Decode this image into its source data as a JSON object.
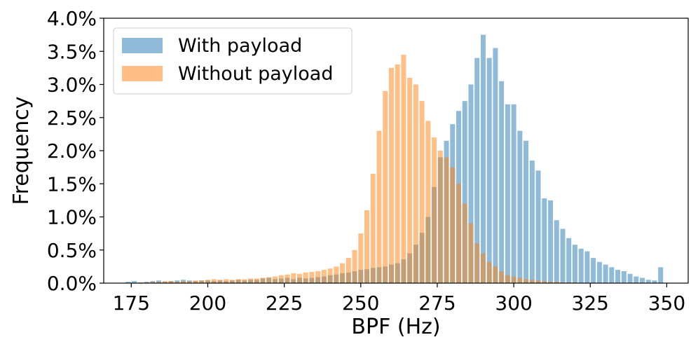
{
  "chart_data": {
    "type": "histogram",
    "xlabel": "BPF (Hz)",
    "ylabel": "Frequency",
    "xlim": [
      166,
      357
    ],
    "ylim": [
      0,
      0.04
    ],
    "bin_width": 1.6,
    "xticks": [
      175,
      200,
      225,
      250,
      275,
      300,
      325,
      350
    ],
    "xtick_labels": [
      "175",
      "200",
      "225",
      "250",
      "275",
      "300",
      "325",
      "350"
    ],
    "yticks": [
      0,
      0.005,
      0.01,
      0.015,
      0.02,
      0.025,
      0.03,
      0.035,
      0.04
    ],
    "ytick_labels": [
      "0.0%",
      "0.5%",
      "1.0%",
      "1.5%",
      "2.0%",
      "2.5%",
      "3.0%",
      "3.5%",
      "4.0%"
    ],
    "legend_position": "upper-left",
    "series": [
      {
        "name": "With payload",
        "color": "#1f77b4",
        "opacity": 0.5,
        "x": [
          174,
          176,
          178,
          180,
          182,
          184,
          186,
          188,
          190,
          192,
          194,
          196,
          198,
          200,
          202,
          204,
          206,
          208,
          210,
          212,
          214,
          216,
          218,
          220,
          222,
          224,
          226,
          228,
          230,
          232,
          234,
          236,
          238,
          240,
          242,
          244,
          246,
          248,
          250,
          252,
          254,
          256,
          258,
          260,
          262,
          264,
          266,
          268,
          270,
          272,
          274,
          276,
          278,
          280,
          282,
          284,
          286,
          288,
          290,
          292,
          294,
          296,
          298,
          300,
          302,
          304,
          306,
          308,
          310,
          312,
          314,
          316,
          318,
          320,
          322,
          324,
          326,
          328,
          330,
          332,
          334,
          336,
          338,
          340,
          342,
          344,
          346,
          348,
          350
        ],
        "values": [
          0.0002,
          0.0003,
          0.0001,
          0.0002,
          0.0003,
          0.0004,
          0.0002,
          0.0003,
          0.0004,
          0.0005,
          0.0004,
          0.0003,
          0.0004,
          0.0004,
          0.0003,
          0.0004,
          0.0003,
          0.0004,
          0.0005,
          0.0004,
          0.0005,
          0.0005,
          0.0007,
          0.0008,
          0.0006,
          0.0007,
          0.0008,
          0.0006,
          0.0008,
          0.0007,
          0.0008,
          0.0009,
          0.001,
          0.0012,
          0.0013,
          0.0015,
          0.0016,
          0.0018,
          0.002,
          0.0021,
          0.0023,
          0.0024,
          0.0025,
          0.0028,
          0.003,
          0.0036,
          0.0045,
          0.0058,
          0.0076,
          0.01,
          0.0145,
          0.019,
          0.0215,
          0.024,
          0.026,
          0.0275,
          0.03,
          0.034,
          0.0375,
          0.034,
          0.0355,
          0.0305,
          0.027,
          0.027,
          0.023,
          0.0215,
          0.0185,
          0.017,
          0.0128,
          0.0125,
          0.0095,
          0.0082,
          0.0068,
          0.0058,
          0.0052,
          0.0048,
          0.0038,
          0.0032,
          0.0028,
          0.0024,
          0.002,
          0.0018,
          0.0014,
          0.001,
          0.0008,
          0.0005,
          0.0004,
          0.0024,
          0.0
        ]
      },
      {
        "name": "Without payload",
        "color": "#ff7f0e",
        "opacity": 0.5,
        "x": [
          174,
          176,
          178,
          180,
          182,
          184,
          186,
          188,
          190,
          192,
          194,
          196,
          198,
          200,
          202,
          204,
          206,
          208,
          210,
          212,
          214,
          216,
          218,
          220,
          222,
          224,
          226,
          228,
          230,
          232,
          234,
          236,
          238,
          240,
          242,
          244,
          246,
          248,
          250,
          252,
          254,
          256,
          258,
          260,
          262,
          264,
          266,
          268,
          270,
          272,
          274,
          276,
          278,
          280,
          282,
          284,
          286,
          288,
          290,
          292,
          294,
          296,
          298,
          300,
          302,
          304,
          306,
          308,
          310,
          312,
          314,
          316,
          318,
          320,
          322,
          324,
          326,
          328,
          330,
          332,
          334,
          336,
          338,
          340,
          342,
          344,
          346,
          348,
          350
        ],
        "values": [
          0.0,
          0.0,
          0.0001,
          0.0001,
          0.0002,
          0.0002,
          0.0003,
          0.0003,
          0.0002,
          0.0003,
          0.0003,
          0.0004,
          0.0004,
          0.0005,
          0.0006,
          0.0005,
          0.0006,
          0.0005,
          0.0006,
          0.0006,
          0.0007,
          0.0007,
          0.0008,
          0.0009,
          0.001,
          0.0012,
          0.0013,
          0.0015,
          0.0014,
          0.0016,
          0.0017,
          0.0018,
          0.002,
          0.0022,
          0.0025,
          0.003,
          0.0038,
          0.005,
          0.0075,
          0.011,
          0.0165,
          0.023,
          0.029,
          0.0325,
          0.033,
          0.0345,
          0.031,
          0.03,
          0.0275,
          0.0245,
          0.022,
          0.02,
          0.019,
          0.0175,
          0.015,
          0.012,
          0.009,
          0.006,
          0.0045,
          0.0032,
          0.0025,
          0.0018,
          0.0012,
          0.001,
          0.0008,
          0.0006,
          0.0005,
          0.0004,
          0.0003,
          0.0002,
          0.0002,
          0.0001,
          0.0001,
          0.0001,
          0.0,
          0.0,
          0.0,
          0.0,
          0.0,
          0.0,
          0.0,
          0.0,
          0.0,
          0.0,
          0.0,
          0.0,
          0.0,
          0.0,
          0.0
        ]
      }
    ]
  }
}
